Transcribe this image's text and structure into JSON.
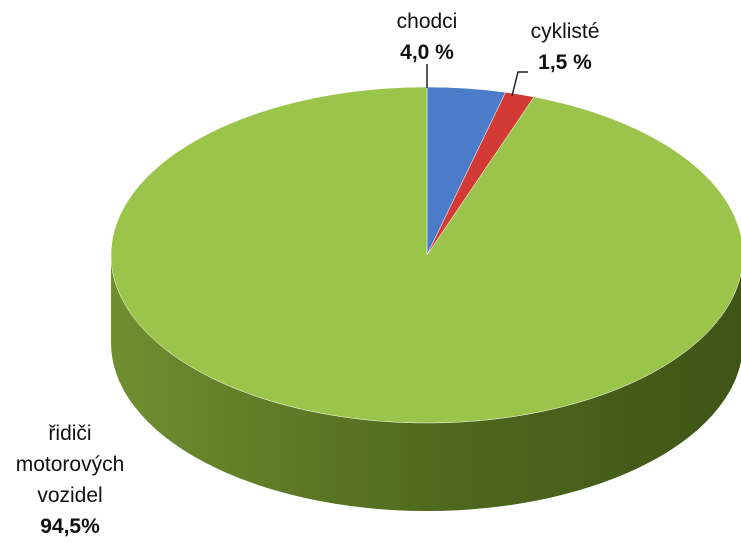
{
  "chart_data": {
    "type": "pie",
    "categories": [
      "chodci",
      "cyklisté",
      "řidiči motorových vozidel"
    ],
    "values": [
      4.0,
      1.5,
      94.5
    ],
    "value_labels": [
      "4,0 %",
      "1,5 %",
      "94,5%"
    ],
    "colors": [
      "#4a7cc9",
      "#d33a36",
      "#9bc44a"
    ]
  }
}
